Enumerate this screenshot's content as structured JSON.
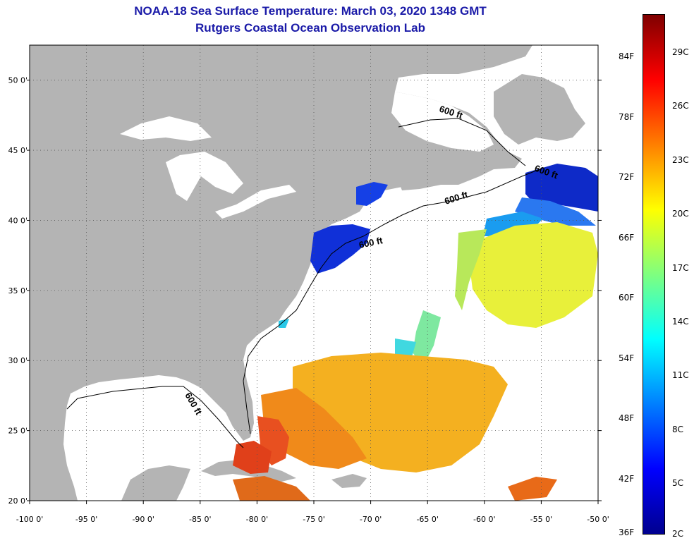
{
  "header": {
    "title": "NOAA-18 Sea Surface Temperature:  March 03, 2020 1348 GMT",
    "subtitle": "Rutgers Coastal Ocean Observation Lab"
  },
  "map": {
    "lon_range": [
      -100,
      -50
    ],
    "lat_range": [
      20,
      52.5
    ],
    "lon_ticks": [
      -100,
      -95,
      -90,
      -85,
      -80,
      -75,
      -70,
      -65,
      -60,
      -55,
      -50
    ],
    "lat_ticks": [
      20,
      25,
      30,
      35,
      40,
      45,
      50
    ],
    "lon_tick_labels": [
      "-100 0'",
      "-95 0'",
      "-90 0'",
      "-85 0'",
      "-80 0'",
      "-75 0'",
      "-70 0'",
      "-65 0'",
      "-60 0'",
      "-55 0'",
      "-50 0'"
    ],
    "lat_tick_labels": [
      "20 0'",
      "25 0'",
      "30 0'",
      "35 0'",
      "40 0'",
      "45 0'",
      "50 0'"
    ],
    "contour_labels": [
      "600 ft",
      "600 ft",
      "600 ft",
      "600 ft",
      "600 ft"
    ],
    "land_color": "#b4b4b4",
    "grid": "dotted"
  },
  "colorbar": {
    "fahrenheit_labels": [
      "84F",
      "78F",
      "72F",
      "66F",
      "60F",
      "54F",
      "48F",
      "42F",
      "36F"
    ],
    "celsius_labels": [
      "29C",
      "26C",
      "23C",
      "20C",
      "17C",
      "14C",
      "11C",
      "8C",
      "5C",
      "2C"
    ],
    "colors": [
      "#7f0000",
      "#ff0000",
      "#ff7f00",
      "#ffff00",
      "#7fff7f",
      "#00ffff",
      "#007fff",
      "#0000ff",
      "#00008f"
    ]
  }
}
